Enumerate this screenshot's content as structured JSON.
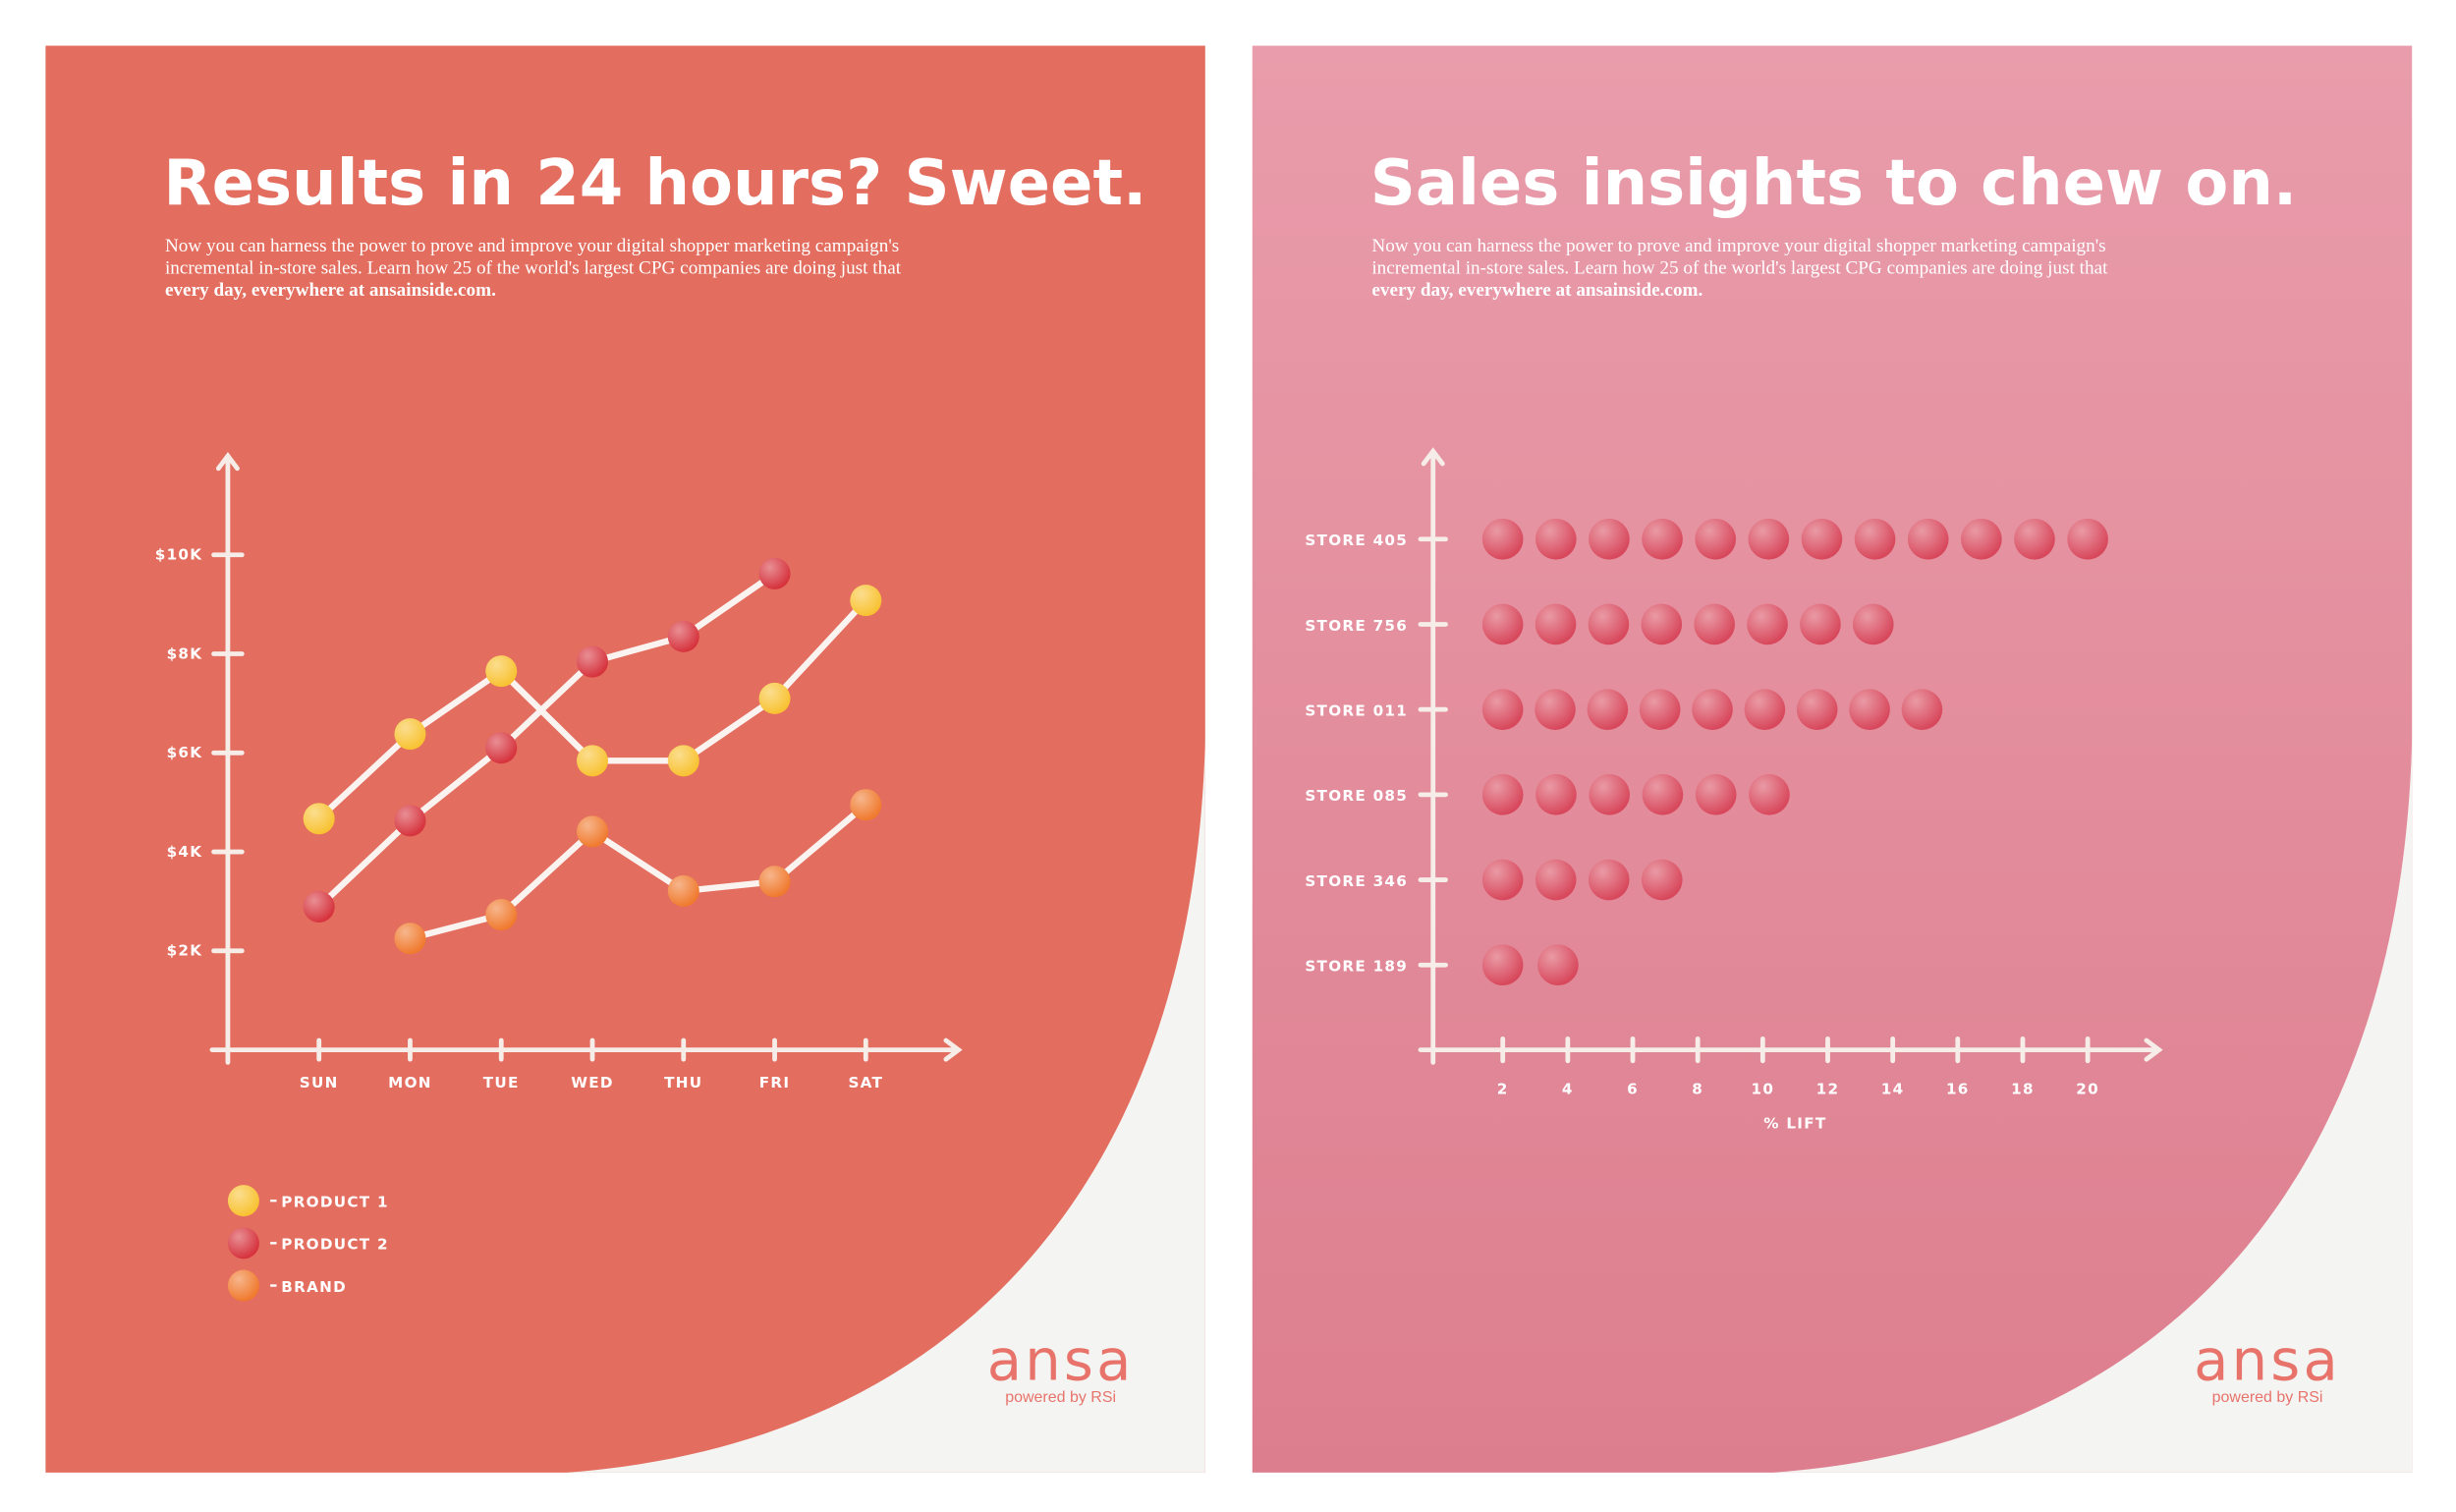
{
  "chart_data": [
    {
      "type": "line",
      "title": "Results in 24 hours? Sweet.",
      "categories": [
        "SUN",
        "MON",
        "TUE",
        "WED",
        "THU",
        "FRI",
        "SAT"
      ],
      "series": [
        {
          "name": "PRODUCT 1",
          "color": "#f8c232",
          "values": [
            4670,
            6380,
            7650,
            5840,
            5840,
            7100,
            9080
          ]
        },
        {
          "name": "PRODUCT 2",
          "color": "#d6333d",
          "values": [
            2890,
            4630,
            6100,
            7840,
            8350,
            9620,
            null
          ]
        },
        {
          "name": "BRAND",
          "color": "#f07a2e",
          "values": [
            null,
            2250,
            2730,
            4410,
            3210,
            3400,
            4950
          ]
        }
      ],
      "ylim": [
        0,
        12000
      ],
      "yticks": [
        {
          "value": 2000,
          "label": "$2K"
        },
        {
          "value": 4000,
          "label": "$4K"
        },
        {
          "value": 6000,
          "label": "$6K"
        },
        {
          "value": 8000,
          "label": "$8K"
        },
        {
          "value": 10000,
          "label": "$10K"
        }
      ],
      "legend": "bottom-left"
    },
    {
      "type": "bar",
      "orientation": "horizontal",
      "title": "Sales insights to chew on.",
      "categories": [
        "STORE 405",
        "STORE 756",
        "STORE 011",
        "STORE 085",
        "STORE 346",
        "STORE 189"
      ],
      "values": [
        20,
        13.4,
        14.9,
        10.2,
        6.9,
        3.7
      ],
      "color": "#d8485c",
      "xlim": [
        0,
        22
      ],
      "xticks": [
        2,
        4,
        6,
        8,
        10,
        12,
        14,
        16,
        18,
        20
      ],
      "xlabel": "% LIFT"
    }
  ],
  "ads": [
    {
      "body": [
        "Now you can harness the power to prove and improve your digital shopper marketing campaign's",
        "incremental in-store sales. Learn how 25 of the world's largest CPG companies are doing just that"
      ],
      "body_bold": "every day, everywhere at ansainside.com.",
      "logo": "ansa",
      "tagline": "powered by RSi"
    },
    {
      "body": [
        "Now you can harness the power to prove and improve your digital shopper marketing campaign's",
        "incremental in-store sales. Learn how 25 of the world's largest CPG companies are doing just that"
      ],
      "body_bold": "every day, everywhere at ansainside.com.",
      "logo": "ansa",
      "tagline": "powered by RSi"
    }
  ]
}
